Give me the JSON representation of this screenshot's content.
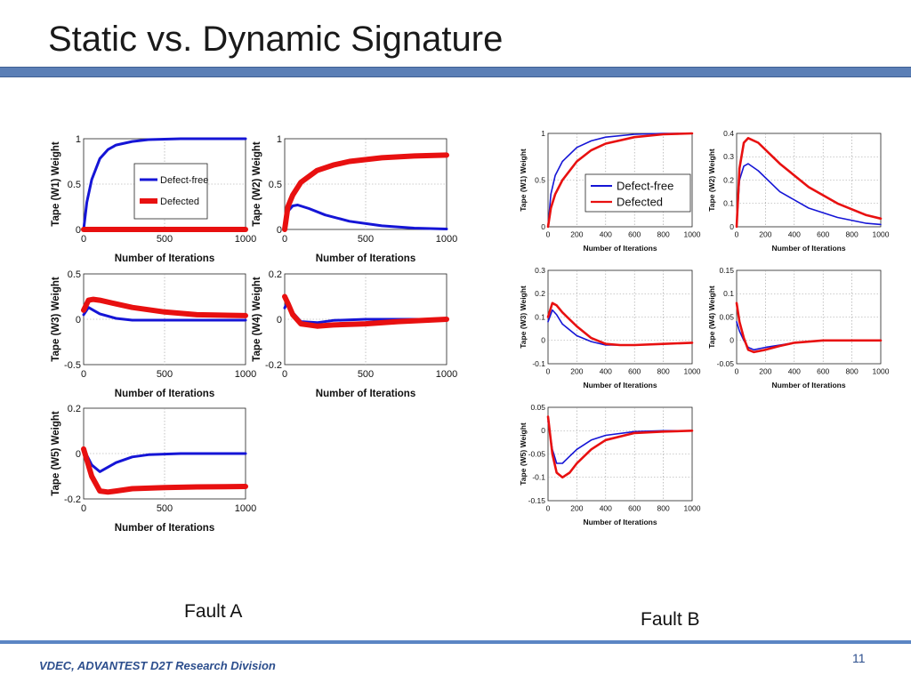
{
  "slide": {
    "title": "Static vs. Dynamic Signature",
    "footer": "VDEC, ADVANTEST D2T Research Division",
    "page_number": "11",
    "fault_a_label": "Fault A",
    "fault_b_label": "Fault B",
    "colors": {
      "defect_free": "#1515d6",
      "defected": "#e81010",
      "bar": "#5b7fb6"
    }
  },
  "chart_data": [
    {
      "type": "line",
      "group": "fault-a",
      "ylabel": "Tape (W1) Weight",
      "xlabel": "Number of Iterations",
      "xlim": [
        0,
        1000
      ],
      "ylim": [
        0,
        1
      ],
      "xticks": [
        0,
        500,
        1000
      ],
      "yticks": [
        0,
        0.5,
        1
      ],
      "grid": true,
      "legend": "center-right",
      "series": [
        {
          "name": "Defect-free",
          "x": [
            0,
            20,
            50,
            100,
            150,
            200,
            300,
            400,
            600,
            800,
            1000
          ],
          "y": [
            0,
            0.3,
            0.55,
            0.78,
            0.88,
            0.93,
            0.97,
            0.99,
            1,
            1,
            1
          ]
        },
        {
          "name": "Defected",
          "x": [
            0,
            1000
          ],
          "y": [
            0,
            0
          ]
        }
      ]
    },
    {
      "type": "line",
      "group": "fault-a",
      "ylabel": "Tape (W2) Weight",
      "xlabel": "Number of Iterations",
      "xlim": [
        0,
        1000
      ],
      "ylim": [
        0,
        1
      ],
      "xticks": [
        0,
        500,
        1000
      ],
      "yticks": [
        0,
        0.5,
        1
      ],
      "grid": true,
      "series": [
        {
          "name": "Defect-free",
          "x": [
            0,
            20,
            50,
            80,
            150,
            250,
            400,
            600,
            800,
            1000
          ],
          "y": [
            0,
            0.2,
            0.26,
            0.27,
            0.23,
            0.16,
            0.09,
            0.04,
            0.015,
            0.005
          ]
        },
        {
          "name": "Defected",
          "x": [
            0,
            20,
            50,
            100,
            200,
            300,
            400,
            600,
            800,
            1000
          ],
          "y": [
            0,
            0.25,
            0.38,
            0.52,
            0.65,
            0.71,
            0.75,
            0.79,
            0.81,
            0.82
          ]
        }
      ]
    },
    {
      "type": "line",
      "group": "fault-a",
      "ylabel": "Tape (W3) Weight",
      "xlabel": "Number of Iterations",
      "xlim": [
        0,
        1000
      ],
      "ylim": [
        -0.5,
        0.5
      ],
      "xticks": [
        0,
        500,
        1000
      ],
      "yticks": [
        -0.5,
        0,
        0.5
      ],
      "grid": true,
      "series": [
        {
          "name": "Defect-free",
          "x": [
            0,
            30,
            60,
            100,
            200,
            300,
            500,
            1000
          ],
          "y": [
            0.05,
            0.13,
            0.1,
            0.06,
            0.01,
            -0.01,
            -0.01,
            -0.01
          ]
        },
        {
          "name": "Defected",
          "x": [
            0,
            30,
            60,
            100,
            200,
            300,
            500,
            700,
            1000
          ],
          "y": [
            0.1,
            0.21,
            0.22,
            0.21,
            0.17,
            0.13,
            0.08,
            0.05,
            0.04
          ]
        }
      ]
    },
    {
      "type": "line",
      "group": "fault-a",
      "ylabel": "Tape (W4) Weight",
      "xlabel": "Number of Iterations",
      "xlim": [
        0,
        1000
      ],
      "ylim": [
        -0.2,
        0.2
      ],
      "xticks": [
        0,
        500,
        1000
      ],
      "yticks": [
        -0.2,
        0,
        0.2
      ],
      "grid": true,
      "series": [
        {
          "name": "Defect-free",
          "x": [
            0,
            20,
            50,
            100,
            200,
            300,
            500,
            1000
          ],
          "y": [
            0.05,
            0.08,
            0.03,
            -0.01,
            -0.015,
            -0.005,
            0,
            0
          ]
        },
        {
          "name": "Defected",
          "x": [
            0,
            20,
            50,
            100,
            200,
            300,
            500,
            700,
            1000
          ],
          "y": [
            0.1,
            0.07,
            0.02,
            -0.02,
            -0.03,
            -0.025,
            -0.02,
            -0.01,
            0
          ]
        }
      ]
    },
    {
      "type": "line",
      "group": "fault-a",
      "ylabel": "Tape (W5) Weight",
      "xlabel": "Number of Iterations",
      "xlim": [
        0,
        1000
      ],
      "ylim": [
        -0.2,
        0.2
      ],
      "xticks": [
        0,
        500,
        1000
      ],
      "yticks": [
        -0.2,
        0,
        0.2
      ],
      "grid": true,
      "series": [
        {
          "name": "Defect-free",
          "x": [
            0,
            50,
            100,
            150,
            200,
            300,
            400,
            600,
            1000
          ],
          "y": [
            0.02,
            -0.05,
            -0.08,
            -0.06,
            -0.04,
            -0.015,
            -0.005,
            0,
            0
          ]
        },
        {
          "name": "Defected",
          "x": [
            0,
            50,
            100,
            150,
            200,
            300,
            500,
            700,
            1000
          ],
          "y": [
            0.02,
            -0.1,
            -0.165,
            -0.17,
            -0.165,
            -0.155,
            -0.15,
            -0.147,
            -0.145
          ]
        }
      ]
    },
    {
      "type": "line",
      "group": "fault-b",
      "ylabel": "Tape (W1) Weight",
      "xlabel": "Number of Iterations",
      "xlim": [
        0,
        1000
      ],
      "ylim": [
        0,
        1
      ],
      "xticks": [
        0,
        200,
        400,
        600,
        800,
        1000
      ],
      "yticks": [
        0,
        0.5,
        1
      ],
      "grid": true,
      "legend": "center-right",
      "series": [
        {
          "name": "Defect-free",
          "x": [
            0,
            20,
            50,
            100,
            200,
            300,
            400,
            600,
            800,
            1000
          ],
          "y": [
            0,
            0.35,
            0.55,
            0.7,
            0.85,
            0.92,
            0.96,
            0.99,
            1,
            1
          ]
        },
        {
          "name": "Defected",
          "x": [
            0,
            20,
            50,
            100,
            200,
            300,
            400,
            600,
            800,
            1000
          ],
          "y": [
            0,
            0.2,
            0.35,
            0.5,
            0.7,
            0.82,
            0.89,
            0.96,
            0.99,
            1
          ]
        }
      ]
    },
    {
      "type": "line",
      "group": "fault-b",
      "ylabel": "Tape (W2) Weight",
      "xlabel": "Number of Iterations",
      "xlim": [
        0,
        1000
      ],
      "ylim": [
        0,
        0.4
      ],
      "xticks": [
        0,
        200,
        400,
        600,
        800,
        1000
      ],
      "yticks": [
        0,
        0.1,
        0.2,
        0.3,
        0.4
      ],
      "grid": true,
      "series": [
        {
          "name": "Defect-free",
          "x": [
            0,
            20,
            50,
            80,
            150,
            300,
            500,
            700,
            900,
            1000
          ],
          "y": [
            0,
            0.2,
            0.26,
            0.27,
            0.24,
            0.15,
            0.08,
            0.04,
            0.015,
            0.01
          ]
        },
        {
          "name": "Defected",
          "x": [
            0,
            20,
            50,
            80,
            150,
            300,
            500,
            700,
            900,
            1000
          ],
          "y": [
            0,
            0.25,
            0.36,
            0.38,
            0.36,
            0.27,
            0.17,
            0.1,
            0.05,
            0.035
          ]
        }
      ]
    },
    {
      "type": "line",
      "group": "fault-b",
      "ylabel": "Tape (W3) Weight",
      "xlabel": "Number of Iterations",
      "xlim": [
        0,
        1000
      ],
      "ylim": [
        -0.1,
        0.3
      ],
      "xticks": [
        0,
        200,
        400,
        600,
        800,
        1000
      ],
      "yticks": [
        -0.1,
        0,
        0.1,
        0.2,
        0.3
      ],
      "grid": true,
      "series": [
        {
          "name": "Defect-free",
          "x": [
            0,
            30,
            60,
            100,
            200,
            300,
            400,
            600,
            800,
            1000
          ],
          "y": [
            0.08,
            0.13,
            0.11,
            0.07,
            0.02,
            -0.005,
            -0.02,
            -0.02,
            -0.015,
            -0.01
          ]
        },
        {
          "name": "Defected",
          "x": [
            0,
            30,
            60,
            100,
            200,
            300,
            400,
            500,
            600,
            800,
            1000
          ],
          "y": [
            0.1,
            0.16,
            0.15,
            0.12,
            0.06,
            0.01,
            -0.015,
            -0.02,
            -0.02,
            -0.015,
            -0.01
          ]
        }
      ]
    },
    {
      "type": "line",
      "group": "fault-b",
      "ylabel": "Tape (W4) Weight",
      "xlabel": "Number of Iterations",
      "xlim": [
        0,
        1000
      ],
      "ylim": [
        -0.05,
        0.15
      ],
      "xticks": [
        0,
        200,
        400,
        600,
        800,
        1000
      ],
      "yticks": [
        -0.05,
        0,
        0.05,
        0.1,
        0.15
      ],
      "grid": true,
      "series": [
        {
          "name": "Defect-free",
          "x": [
            0,
            20,
            50,
            80,
            120,
            200,
            300,
            400,
            600,
            800,
            1000
          ],
          "y": [
            0.04,
            0.02,
            0,
            -0.015,
            -0.02,
            -0.015,
            -0.01,
            -0.005,
            0,
            0,
            0
          ]
        },
        {
          "name": "Defected",
          "x": [
            0,
            20,
            50,
            80,
            120,
            200,
            300,
            400,
            600,
            800,
            1000
          ],
          "y": [
            0.08,
            0.04,
            0.005,
            -0.02,
            -0.025,
            -0.02,
            -0.012,
            -0.005,
            0,
            0,
            0
          ]
        }
      ]
    },
    {
      "type": "line",
      "group": "fault-b",
      "ylabel": "Tape (W5) Weight",
      "xlabel": "Number of Iterations",
      "xlim": [
        0,
        1000
      ],
      "ylim": [
        -0.15,
        0.05
      ],
      "xticks": [
        0,
        200,
        400,
        600,
        800,
        1000
      ],
      "yticks": [
        -0.15,
        -0.1,
        -0.05,
        0,
        0.05
      ],
      "grid": true,
      "series": [
        {
          "name": "Defect-free",
          "x": [
            0,
            30,
            60,
            100,
            150,
            200,
            300,
            400,
            600,
            800,
            1000
          ],
          "y": [
            0.02,
            -0.04,
            -0.07,
            -0.07,
            -0.055,
            -0.04,
            -0.02,
            -0.01,
            -0.002,
            0,
            0
          ]
        },
        {
          "name": "Defected",
          "x": [
            0,
            30,
            60,
            100,
            150,
            200,
            300,
            400,
            600,
            800,
            1000
          ],
          "y": [
            0.03,
            -0.05,
            -0.09,
            -0.1,
            -0.09,
            -0.07,
            -0.04,
            -0.02,
            -0.005,
            -0.002,
            0
          ]
        }
      ]
    }
  ]
}
